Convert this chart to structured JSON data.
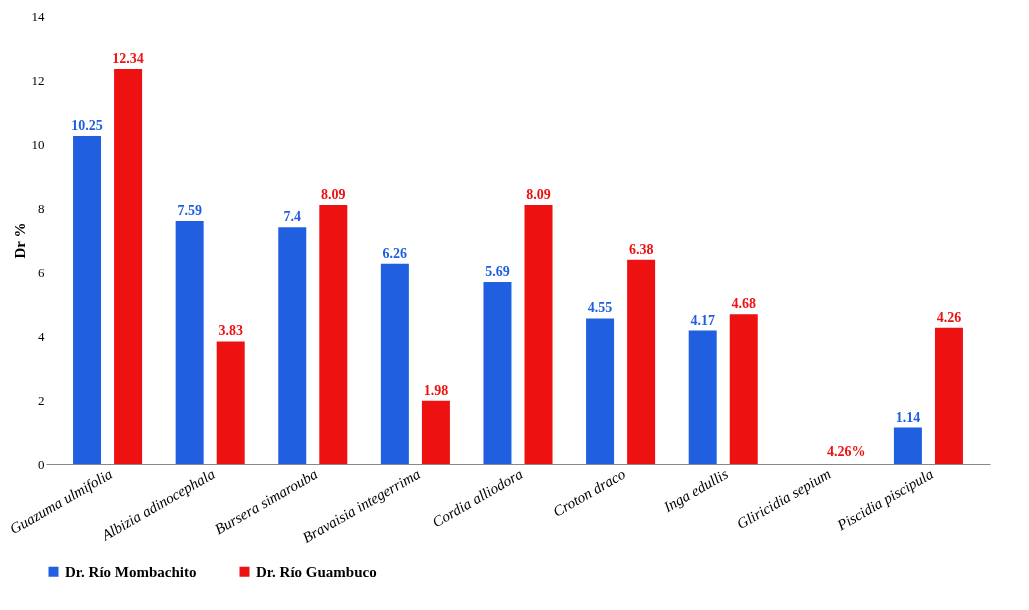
{
  "chart_data": {
    "type": "bar",
    "ylabel": "Dr %",
    "categories": [
      "Guazuma ulmifolia",
      "Albizia adinocephala",
      "Bursera simarouba",
      "Bravaisia integerrima",
      "Cordia alliodora",
      "Croton draco",
      "Inga edullis",
      "Gliricidia sepium",
      "Piscidia piscipula"
    ],
    "series": [
      {
        "name": "Dr. Río Mombachito",
        "color": "#1f5fe0",
        "values": [
          10.25,
          7.59,
          7.4,
          6.26,
          5.69,
          4.55,
          4.17,
          null,
          1.14
        ],
        "value_labels": [
          "10.25",
          "7.59",
          "7.4",
          "6.26",
          "5.69",
          "4.55",
          "4.17",
          null,
          "1.14"
        ]
      },
      {
        "name": "Dr. Río Guambuco",
        "color": "#ee1111",
        "values": [
          12.34,
          3.83,
          8.09,
          1.98,
          8.09,
          6.38,
          4.68,
          0,
          4.26
        ],
        "value_labels": [
          "12.34",
          "3.83",
          "8.09",
          "1.98",
          "8.09",
          "6.38",
          "4.68",
          null,
          "4.26"
        ]
      }
    ],
    "annotations": [
      {
        "text": "4.26%",
        "x": "Gliricidia sepium",
        "y": 0
      }
    ],
    "ylim": [
      0,
      14
    ],
    "yticks": [
      0,
      2,
      4,
      6,
      8,
      10,
      12,
      14
    ],
    "grid": false,
    "legend": "bottom"
  }
}
